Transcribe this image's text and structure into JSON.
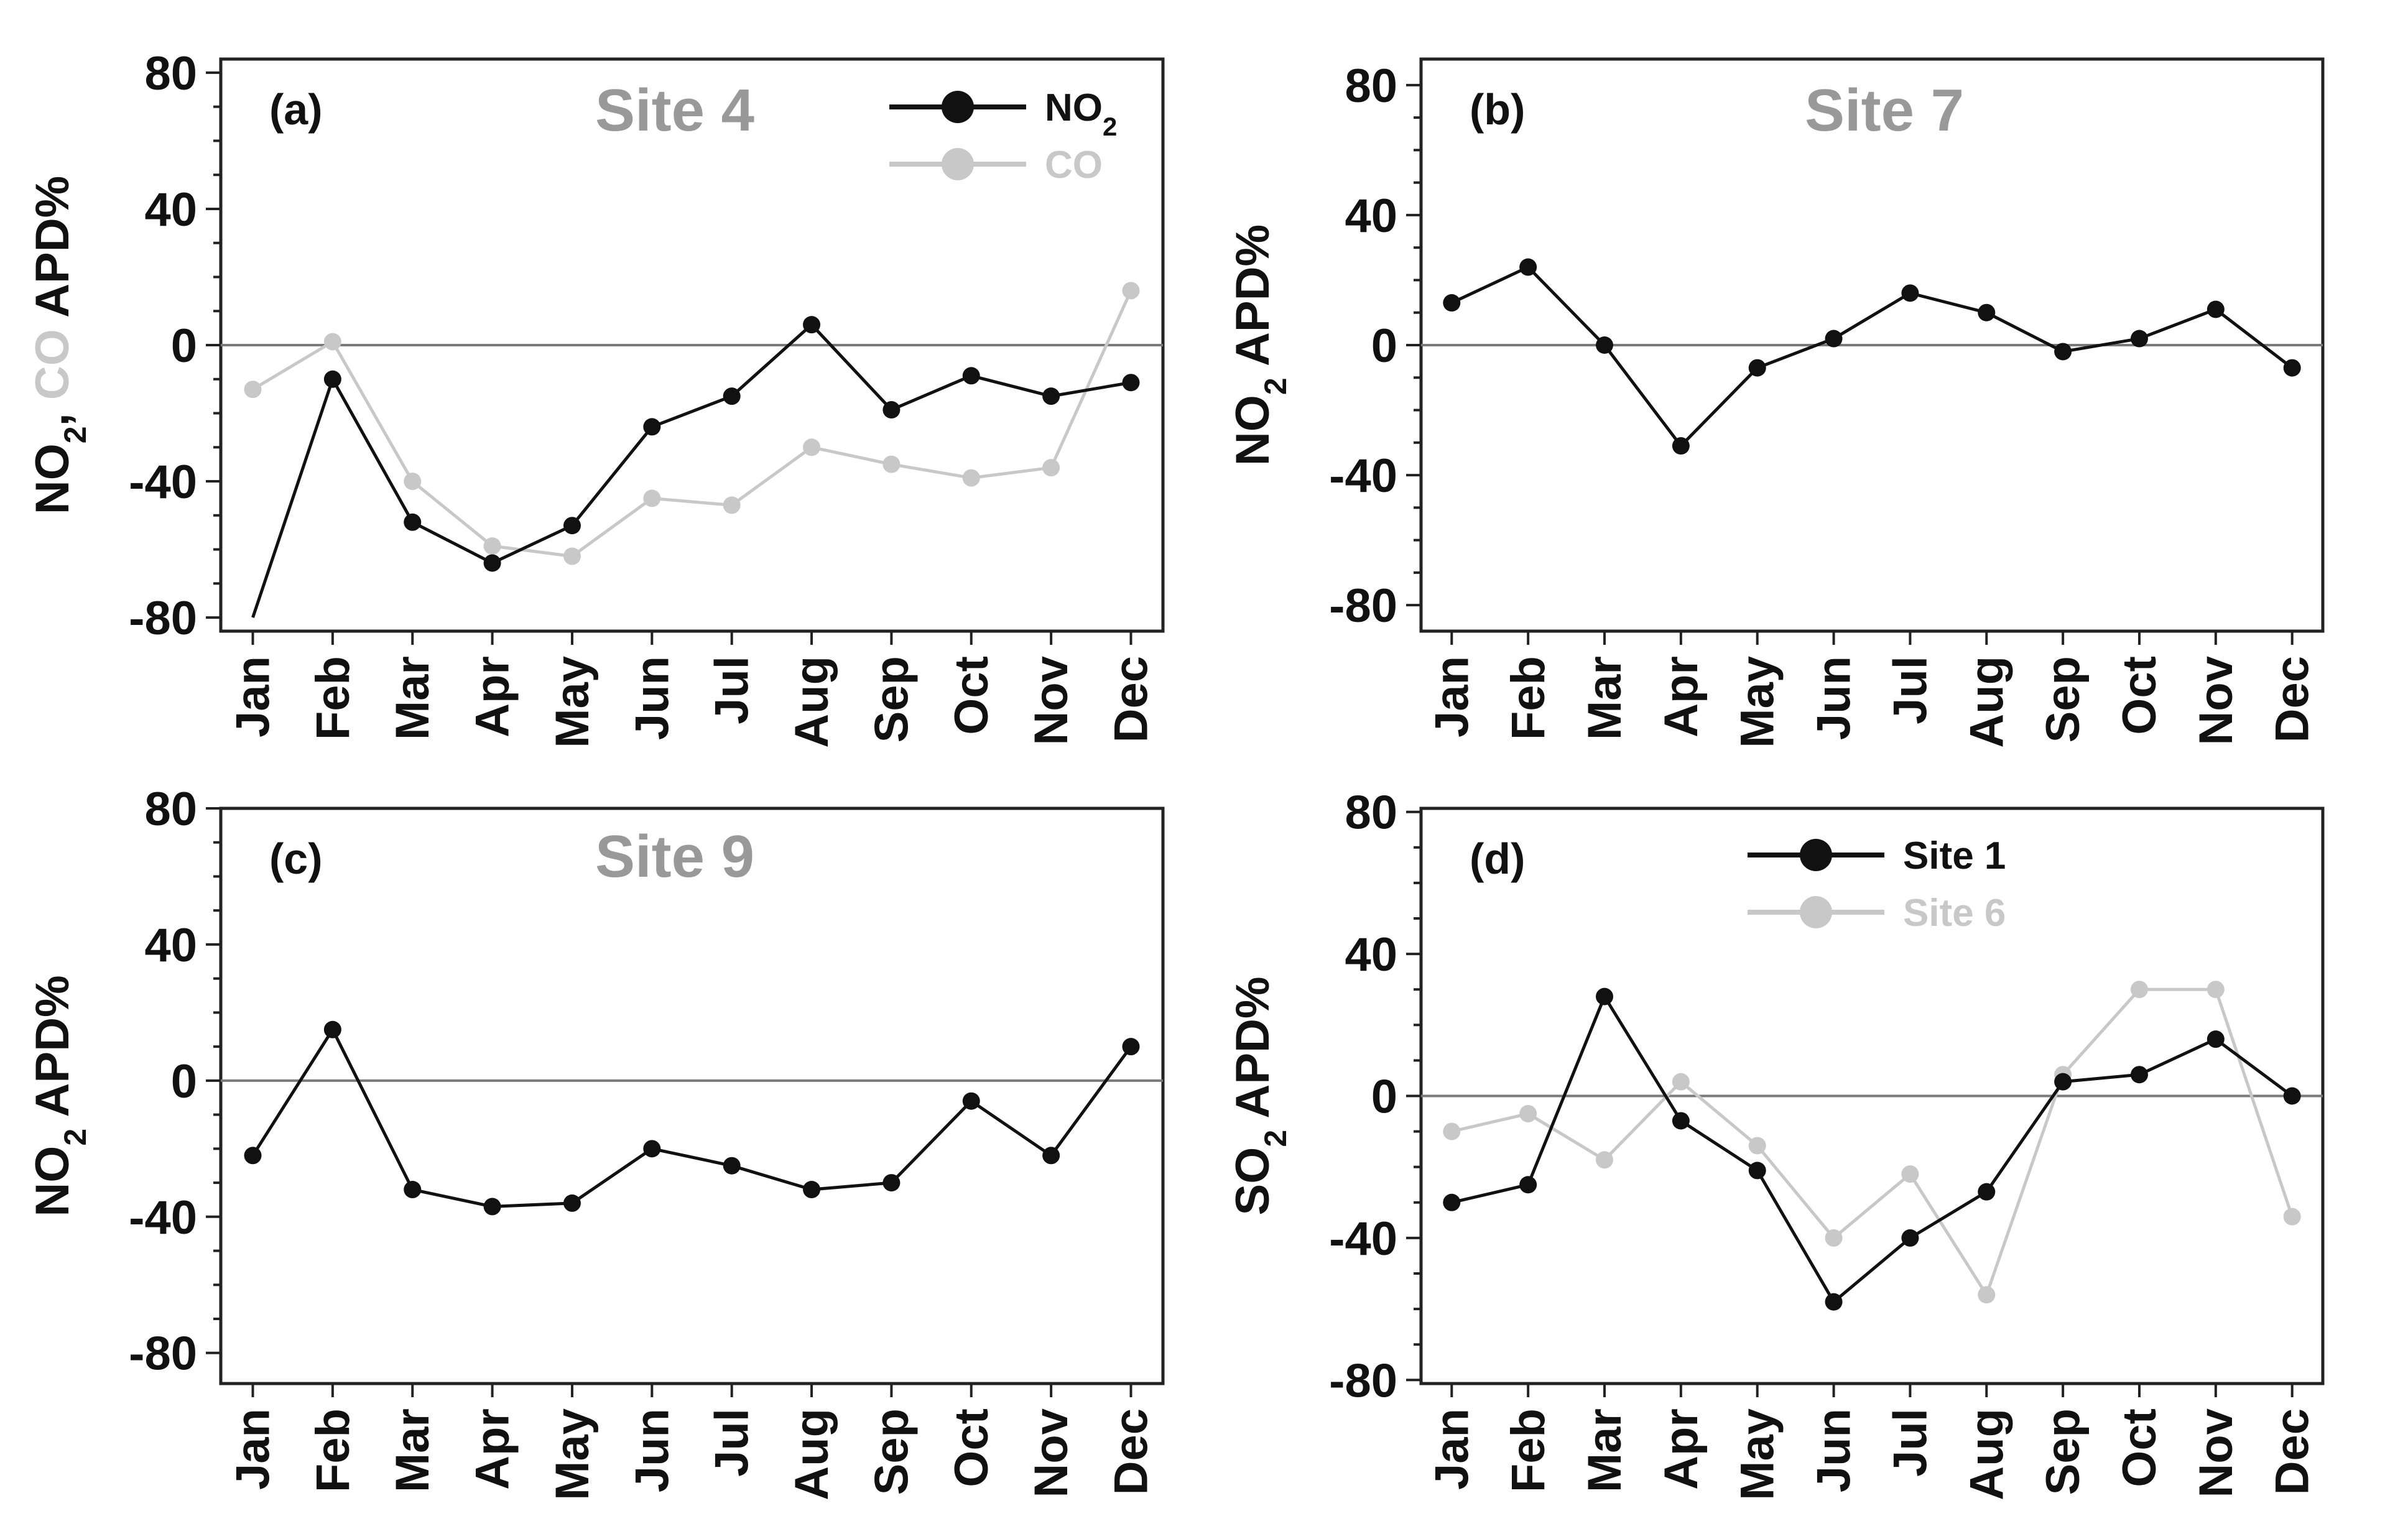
{
  "colors": {
    "dark": "#111111",
    "light": "#c8c8c8",
    "site_title": "#999999",
    "zero_line": "#7a7a7a"
  },
  "chart_data": [
    {
      "type": "line",
      "panel_label": "(a)",
      "title": "Site 4",
      "ylabel": {
        "parts": [
          {
            "text": "NO",
            "color": "dark"
          },
          {
            "text": "2",
            "sub": true,
            "color": "dark"
          },
          {
            "text": ", ",
            "color": "dark"
          },
          {
            "text": "CO",
            "color": "light"
          },
          {
            "text": " APD%",
            "color": "dark"
          }
        ]
      },
      "ylim": [
        -84,
        84
      ],
      "yticks": [
        -80,
        -40,
        0,
        40,
        80
      ],
      "categories": [
        "Jan",
        "Feb",
        "Mar",
        "Apr",
        "May",
        "Jun",
        "Jul",
        "Aug",
        "Sep",
        "Oct",
        "Nov",
        "Dec"
      ],
      "series": [
        {
          "name": "CO",
          "color": "light",
          "values": [
            -13,
            1,
            -40,
            -59,
            -62,
            -45,
            -47,
            -30,
            -35,
            -39,
            -36,
            16
          ],
          "markers": true
        },
        {
          "name": "NO2",
          "color": "dark",
          "values": [
            -80,
            -10,
            -52,
            -64,
            -53,
            -24,
            -15,
            6,
            -19,
            -9,
            -15,
            -11
          ],
          "markers": [
            false,
            true,
            true,
            true,
            true,
            true,
            true,
            true,
            true,
            true,
            true,
            true
          ]
        }
      ],
      "legend": [
        {
          "label": "NO",
          "sub": "2",
          "color": "dark"
        },
        {
          "label": "CO",
          "sub": "",
          "color": "light"
        }
      ]
    },
    {
      "type": "line",
      "panel_label": "(b)",
      "title": "Site 7",
      "ylabel": {
        "parts": [
          {
            "text": "NO",
            "color": "dark"
          },
          {
            "text": "2",
            "sub": true,
            "color": "dark"
          },
          {
            "text": " APD%",
            "color": "dark"
          }
        ]
      },
      "ylim": [
        -88,
        88
      ],
      "yticks": [
        -80,
        -40,
        0,
        40,
        80
      ],
      "categories": [
        "Jan",
        "Feb",
        "Mar",
        "Apr",
        "May",
        "Jun",
        "Jul",
        "Aug",
        "Sep",
        "Oct",
        "Nov",
        "Dec"
      ],
      "series": [
        {
          "name": "NO2",
          "color": "dark",
          "values": [
            13,
            24,
            0,
            -31,
            -7,
            2,
            16,
            10,
            -2,
            2,
            11,
            -7
          ],
          "markers": true
        }
      ],
      "legend": []
    },
    {
      "type": "line",
      "panel_label": "(c)",
      "title": "Site 9",
      "ylabel": {
        "parts": [
          {
            "text": "NO",
            "color": "dark"
          },
          {
            "text": "2",
            "sub": true,
            "color": "dark"
          },
          {
            "text": " APD%",
            "color": "dark"
          }
        ]
      },
      "ylim": [
        -89,
        80
      ],
      "yticks": [
        -80,
        -40,
        0,
        40,
        80
      ],
      "categories": [
        "Jan",
        "Feb",
        "Mar",
        "Apr",
        "May",
        "Jun",
        "Jul",
        "Aug",
        "Sep",
        "Oct",
        "Nov",
        "Dec"
      ],
      "series": [
        {
          "name": "NO2",
          "color": "dark",
          "values": [
            -22,
            15,
            -32,
            -37,
            -36,
            -20,
            -25,
            -32,
            -30,
            -6,
            -22,
            10
          ],
          "markers": true
        }
      ],
      "legend": []
    },
    {
      "type": "line",
      "panel_label": "(d)",
      "title": "",
      "ylabel": {
        "parts": [
          {
            "text": "SO",
            "color": "dark"
          },
          {
            "text": "2",
            "sub": true,
            "color": "dark"
          },
          {
            "text": " APD%",
            "color": "dark"
          }
        ]
      },
      "ylim": [
        -81,
        81
      ],
      "yticks": [
        -80,
        -40,
        0,
        40,
        80
      ],
      "categories": [
        "Jan",
        "Feb",
        "Mar",
        "Apr",
        "May",
        "Jun",
        "Jul",
        "Aug",
        "Sep",
        "Oct",
        "Nov",
        "Dec"
      ],
      "series": [
        {
          "name": "Site 6",
          "color": "light",
          "values": [
            -10,
            -5,
            -18,
            4,
            -14,
            -40,
            -22,
            -56,
            6,
            30,
            30,
            -34
          ],
          "markers": true
        },
        {
          "name": "Site 1",
          "color": "dark",
          "values": [
            -30,
            -25,
            28,
            -7,
            -21,
            -58,
            -40,
            -27,
            4,
            6,
            16,
            0
          ],
          "markers": true
        }
      ],
      "legend": [
        {
          "label": "Site 1",
          "sub": "",
          "color": "dark"
        },
        {
          "label": "Site 6",
          "sub": "",
          "color": "light"
        }
      ]
    }
  ]
}
